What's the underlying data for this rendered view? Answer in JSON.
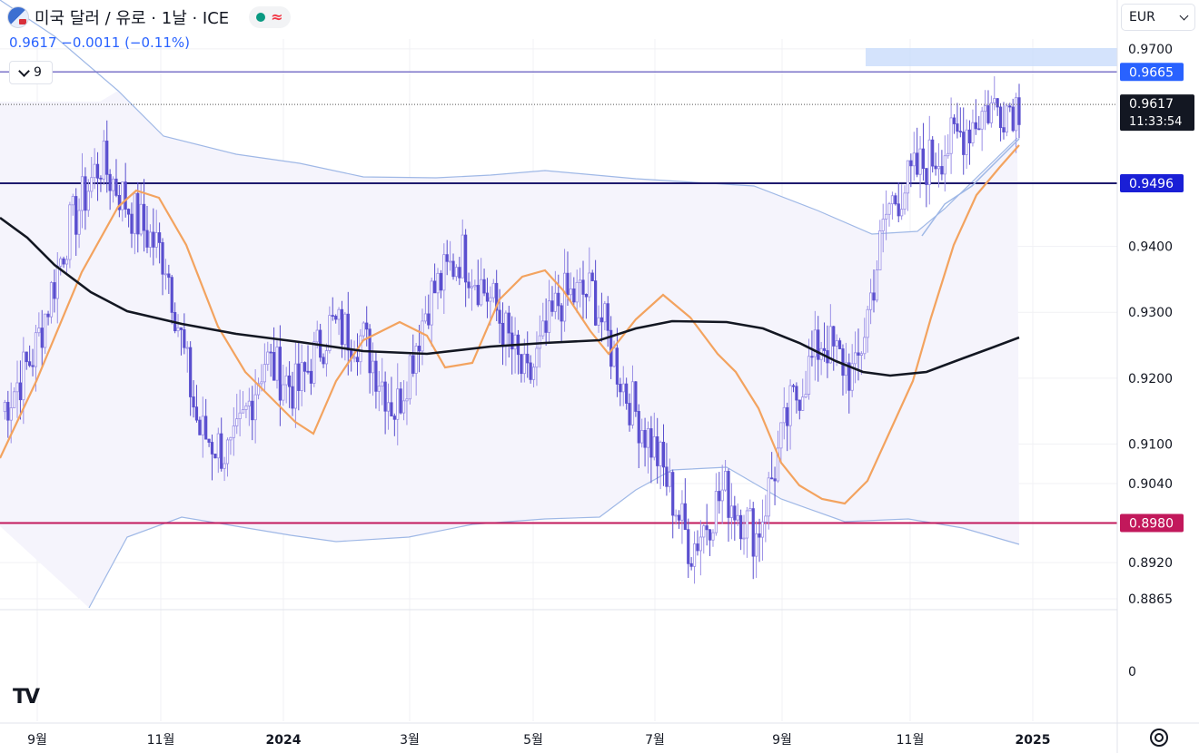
{
  "header": {
    "title": "미국 달러 / 유로 · 1날 · ICE",
    "price_change": "0.9617 −0.0011 (−0.11%)",
    "status_symbol": "≈",
    "indicator_count": "9"
  },
  "currency_selector": {
    "value": "EUR"
  },
  "colors": {
    "upper_line": "#7b73c8",
    "resistance": "#1e1b6e",
    "support": "#c2185b",
    "ema": "#f3a35f",
    "sma": "#131722",
    "bollinger": "#9fb8e6",
    "candle": "#5a4fcf",
    "band_fill": "#f5f4fc"
  },
  "chart_data": {
    "type": "candlestick",
    "title": "미국 달러 / 유로 · 1날 · ICE",
    "ylim": [
      0.8865,
      0.9715
    ],
    "y_ticks": [
      "0.9700",
      "0.9400",
      "0.9300",
      "0.9200",
      "0.9100",
      "0.9040",
      "0.8920",
      "0.8865"
    ],
    "x_ticks": [
      "9월",
      "11월",
      "2024",
      "3월",
      "5월",
      "7월",
      "9월",
      "11월",
      "2025"
    ],
    "volume_pane_label": "0",
    "last_price": "0.9617",
    "countdown": "11:33:54",
    "horizontal_lines": [
      {
        "value": 0.9665,
        "label": "0.9665",
        "role": "upper"
      },
      {
        "value": 0.9496,
        "label": "0.9496",
        "role": "resistance"
      },
      {
        "value": 0.898,
        "label": "0.8980",
        "role": "support"
      }
    ],
    "series_sample_close": [
      0.915,
      0.924,
      0.942,
      0.953,
      0.945,
      0.938,
      0.912,
      0.908,
      0.923,
      0.918,
      0.928,
      0.926,
      0.915,
      0.932,
      0.939,
      0.931,
      0.919,
      0.932,
      0.933,
      0.918,
      0.908,
      0.894,
      0.903,
      0.896,
      0.915,
      0.926,
      0.92,
      0.946,
      0.952,
      0.956,
      0.961,
      0.9617
    ]
  }
}
